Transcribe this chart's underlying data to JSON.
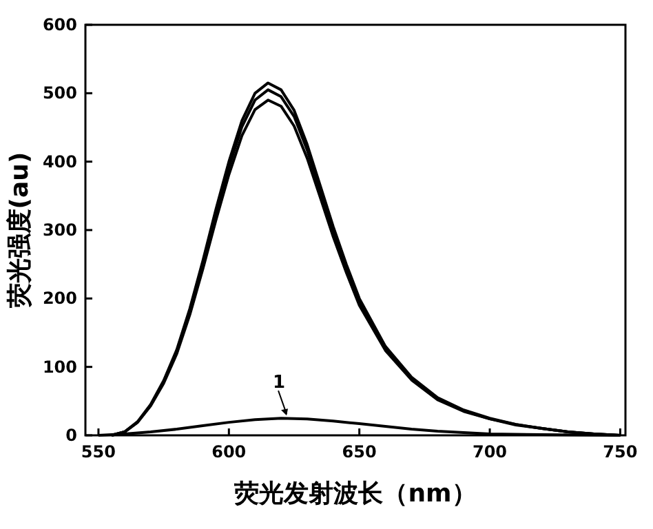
{
  "chart_data": {
    "type": "line",
    "xlabel": "荧光发射波长（nm）",
    "ylabel": "荧光强度(au)",
    "xlim": [
      545,
      752
    ],
    "ylim": [
      0,
      600
    ],
    "xticks": [
      550,
      600,
      650,
      700,
      750
    ],
    "yticks": [
      0,
      100,
      200,
      300,
      400,
      500,
      600
    ],
    "marker": "none",
    "line_style": "solid",
    "annotations": [
      {
        "text": "1",
        "x": 620,
        "y": 25
      }
    ],
    "series": [
      {
        "color": "#000000",
        "x": [
          555,
          560,
          565,
          570,
          575,
          580,
          585,
          590,
          595,
          600,
          605,
          610,
          615,
          620,
          625,
          630,
          635,
          640,
          645,
          650,
          660,
          670,
          680,
          690,
          700,
          710,
          720,
          730,
          740,
          750
        ],
        "values": [
          0,
          5,
          20,
          45,
          80,
          125,
          185,
          255,
          330,
          400,
          460,
          500,
          515,
          505,
          475,
          425,
          365,
          305,
          250,
          200,
          130,
          85,
          55,
          37,
          25,
          16,
          10,
          5,
          2,
          0
        ]
      },
      {
        "color": "#000000",
        "x": [
          555,
          560,
          565,
          570,
          575,
          580,
          585,
          590,
          595,
          600,
          605,
          610,
          615,
          620,
          625,
          630,
          635,
          640,
          645,
          650,
          660,
          670,
          680,
          690,
          700,
          710,
          720,
          730,
          740,
          750
        ],
        "values": [
          0,
          5,
          19,
          44,
          78,
          122,
          181,
          250,
          323,
          392,
          451,
          490,
          505,
          495,
          466,
          417,
          358,
          299,
          245,
          196,
          127,
          83,
          54,
          36,
          24,
          16,
          10,
          5,
          2,
          0
        ]
      },
      {
        "color": "#000000",
        "x": [
          555,
          560,
          565,
          570,
          575,
          580,
          585,
          590,
          595,
          600,
          605,
          610,
          615,
          620,
          625,
          630,
          635,
          640,
          645,
          650,
          660,
          670,
          680,
          690,
          700,
          710,
          720,
          730,
          740,
          750
        ],
        "values": [
          0,
          5,
          19,
          43,
          76,
          119,
          176,
          243,
          314,
          381,
          438,
          476,
          490,
          481,
          452,
          405,
          348,
          290,
          238,
          190,
          124,
          81,
          52,
          35,
          24,
          15,
          10,
          5,
          2,
          0
        ]
      },
      {
        "color": "#000000",
        "x": [
          550,
          560,
          570,
          580,
          590,
          600,
          610,
          620,
          630,
          640,
          650,
          660,
          670,
          680,
          690,
          700,
          720,
          750
        ],
        "values": [
          0,
          2,
          5,
          9,
          14,
          19,
          23,
          25,
          24,
          21,
          17,
          13,
          9,
          6,
          4,
          2,
          1,
          0
        ]
      }
    ]
  }
}
